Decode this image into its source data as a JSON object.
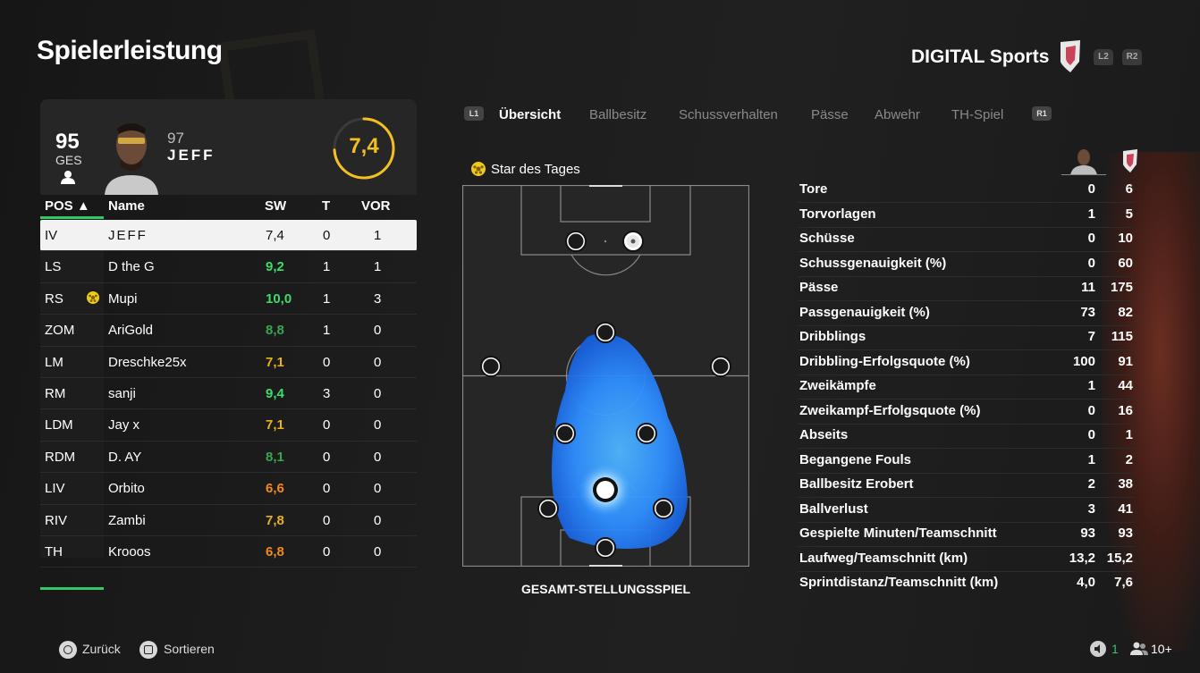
{
  "header": {
    "title": "Spielerleistung",
    "club": "DIGITAL Sports",
    "triggers": [
      "L2",
      "R2"
    ]
  },
  "player": {
    "ges_value": "95",
    "ges_label": "GES",
    "number": "97",
    "name": "JEFF",
    "rating": "7,4",
    "rating_fraction": 0.74
  },
  "table": {
    "headers": {
      "pos": "POS ▲",
      "name": "Name",
      "sw": "SW",
      "t": "T",
      "vor": "VOR"
    },
    "rows": [
      {
        "pos": "IV",
        "name": "JEFF",
        "sw": "7,4",
        "t": "0",
        "vor": "1",
        "color": "#111111"
      },
      {
        "pos": "LS",
        "name": "D the G",
        "sw": "9,2",
        "t": "1",
        "vor": "1",
        "color": "#3ddc6a"
      },
      {
        "pos": "RS",
        "name": "Mupi",
        "sw": "10,0",
        "t": "1",
        "vor": "3",
        "color": "#3ddc6a"
      },
      {
        "pos": "ZOM",
        "name": "AriGold",
        "sw": "8,8",
        "t": "1",
        "vor": "0",
        "color": "#36a64f"
      },
      {
        "pos": "LM",
        "name": "Dreschke25x",
        "sw": "7,1",
        "t": "0",
        "vor": "0",
        "color": "#e8b21a"
      },
      {
        "pos": "RM",
        "name": "sanji",
        "sw": "9,4",
        "t": "3",
        "vor": "0",
        "color": "#3ddc6a"
      },
      {
        "pos": "LDM",
        "name": "Jay x",
        "sw": "7,1",
        "t": "0",
        "vor": "0",
        "color": "#e8b21a"
      },
      {
        "pos": "RDM",
        "name": "D. AY",
        "sw": "8,1",
        "t": "0",
        "vor": "0",
        "color": "#36a64f"
      },
      {
        "pos": "LIV",
        "name": "Orbito",
        "sw": "6,6",
        "t": "0",
        "vor": "0",
        "color": "#f08a1c"
      },
      {
        "pos": "RIV",
        "name": "Zambi",
        "sw": "7,8",
        "t": "0",
        "vor": "0",
        "color": "#e8b21a"
      },
      {
        "pos": "TH",
        "name": "Krooos",
        "sw": "6,8",
        "t": "0",
        "vor": "0",
        "color": "#f08a1c"
      }
    ]
  },
  "tabs": {
    "left_button": "L1",
    "right_button": "R1",
    "items": [
      "Übersicht",
      "Ballbesitz",
      "Schussverhalten",
      "Pässe",
      "Abwehr",
      "TH-Spiel"
    ]
  },
  "star_of_day": "Star des Tages",
  "pitch_label": "GESAMT-STELLUNGSSPIEL",
  "stats": [
    {
      "label": "Tore",
      "player": "0",
      "team": "6"
    },
    {
      "label": "Torvorlagen",
      "player": "1",
      "team": "5"
    },
    {
      "label": "Schüsse",
      "player": "0",
      "team": "10"
    },
    {
      "label": "Schussgenauigkeit (%)",
      "player": "0",
      "team": "60"
    },
    {
      "label": "Pässe",
      "player": "11",
      "team": "175"
    },
    {
      "label": "Passgenauigkeit (%)",
      "player": "73",
      "team": "82"
    },
    {
      "label": "Dribblings",
      "player": "7",
      "team": "115"
    },
    {
      "label": "Dribbling-Erfolgsquote (%)",
      "player": "100",
      "team": "91"
    },
    {
      "label": "Zweikämpfe",
      "player": "1",
      "team": "44"
    },
    {
      "label": "Zweikampf-Erfolgsquote (%)",
      "player": "0",
      "team": "16"
    },
    {
      "label": "Abseits",
      "player": "0",
      "team": "1"
    },
    {
      "label": "Begangene Fouls",
      "player": "1",
      "team": "2"
    },
    {
      "label": "Ballbesitz Erobert",
      "player": "2",
      "team": "38"
    },
    {
      "label": "Ballverlust",
      "player": "3",
      "team": "41"
    },
    {
      "label": "Gespielte Minuten/Teamschnitt",
      "player": "93",
      "team": "93"
    },
    {
      "label": "Laufweg/Teamschnitt (km)",
      "player": "13,2",
      "team": "15,2"
    },
    {
      "label": "Sprintdistanz/Teamschnitt (km)",
      "player": "4,0",
      "team": "7,6"
    }
  ],
  "footer": {
    "back": "Zurück",
    "sort": "Sortieren",
    "mic_count": "1",
    "players": "10+"
  },
  "colors": {
    "accent_green": "#34c76a",
    "rating_gold": "#f3c01f",
    "heatmap_blue": "#2f9bff"
  }
}
